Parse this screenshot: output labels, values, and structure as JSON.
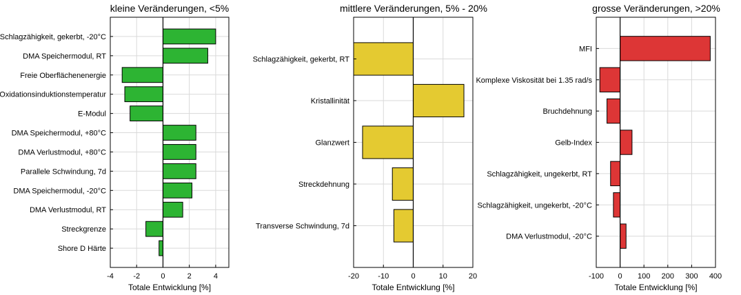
{
  "chart_data": [
    {
      "type": "bar",
      "orientation": "horizontal",
      "title": "kleine Veränderungen, <5%",
      "xlabel": "Totale Entwicklung [%]",
      "xlim": [
        -4,
        5
      ],
      "xticks": [
        -4,
        -2,
        0,
        2,
        4
      ],
      "grid": true,
      "color": "#2db433",
      "categories": [
        "Schlagzähigkeit, gekerbt, -20°C",
        "DMA Speichermodul, RT",
        "Freie Oberflächenenergie",
        "Oxidationsinduktionstemperatur",
        "E-Modul",
        "DMA Speichermodul, +80°C",
        "DMA Verlustmodul, +80°C",
        "Parallele Schwindung, 7d",
        "DMA Speichermodul, -20°C",
        "DMA Verlustmodul, RT",
        "Streckgrenze",
        "Shore D Härte"
      ],
      "values": [
        4.0,
        3.4,
        -3.1,
        -2.9,
        -2.5,
        2.5,
        2.5,
        2.5,
        2.2,
        1.5,
        -1.3,
        -0.3
      ]
    },
    {
      "type": "bar",
      "orientation": "horizontal",
      "title": "mittlere Veränderungen, 5% - 20%",
      "xlabel": "Totale Entwicklung [%]",
      "xlim": [
        -20,
        20
      ],
      "xticks": [
        -20,
        -10,
        0,
        10,
        20
      ],
      "grid": true,
      "color": "#e4ca31",
      "categories": [
        "Schlagzähigkeit, gekerbt, RT",
        "Kristallinität",
        "Glanzwert",
        "Streckdehnung",
        "Transverse Schwindung, 7d"
      ],
      "values": [
        -20,
        17,
        -17,
        -7,
        -6.5
      ]
    },
    {
      "type": "bar",
      "orientation": "horizontal",
      "title": "grosse Veränderungen, >20%",
      "xlabel": "Totale Entwicklung [%]",
      "xlim": [
        -100,
        400
      ],
      "xticks": [
        -100,
        0,
        100,
        200,
        300,
        400
      ],
      "grid": true,
      "color": "#dd3636",
      "categories": [
        "MFI",
        "Komplexe Viskosität bei 1.35 rad/s",
        "Bruchdehnung",
        "Gelb-Index",
        "Schlagzähigkeit, ungekerbt, RT",
        "Schlagzähigkeit, ungekerbt, -20°C",
        "DMA Verlustmodul, -20°C"
      ],
      "values": [
        378,
        -85,
        -55,
        50,
        -40,
        -28,
        25
      ]
    }
  ]
}
